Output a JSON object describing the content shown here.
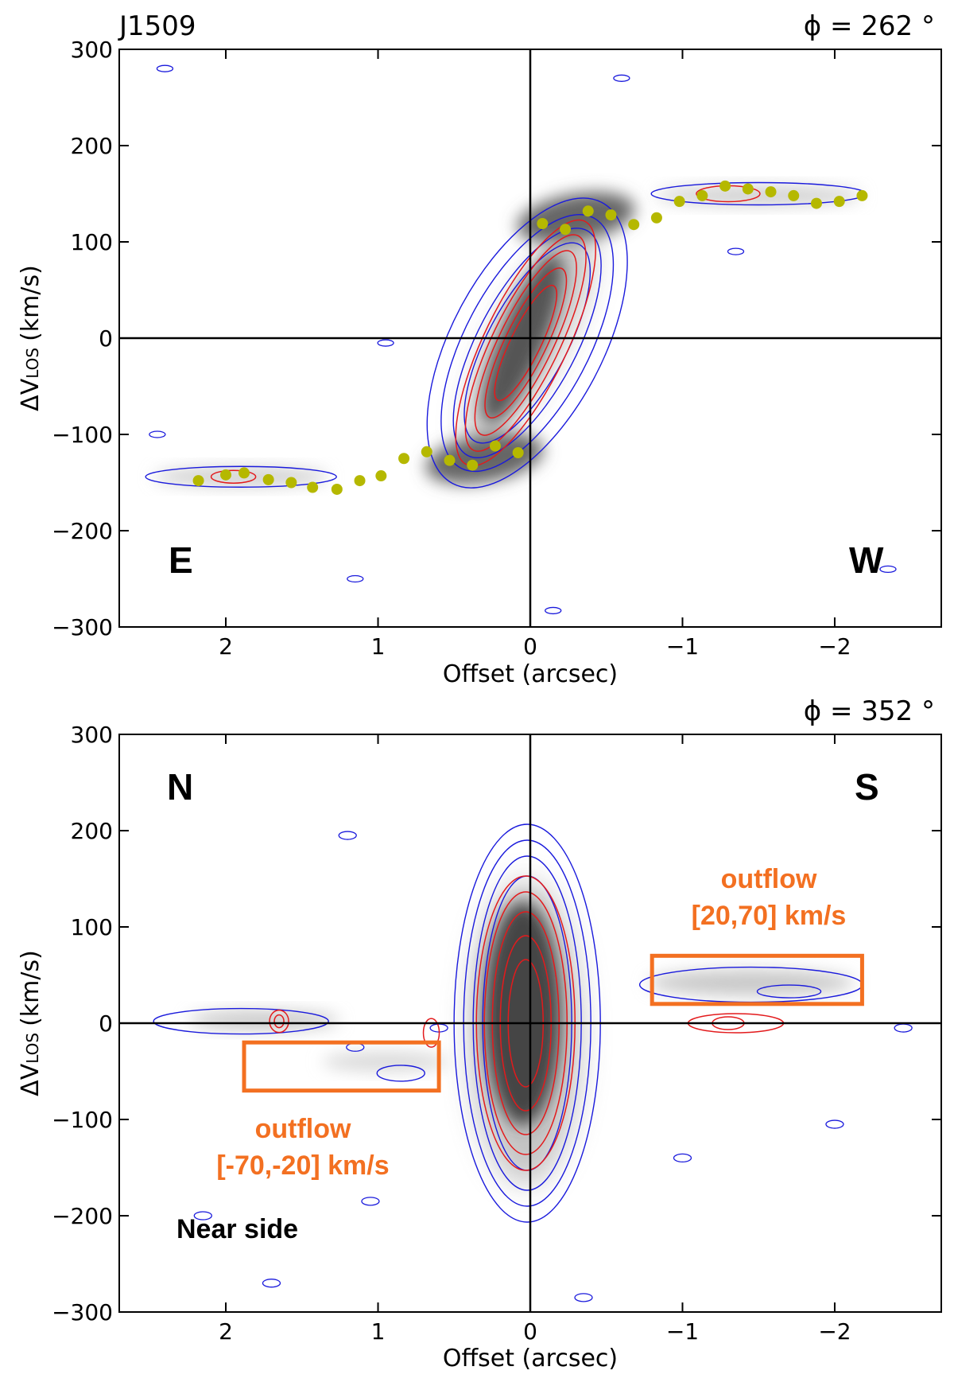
{
  "chart_data": [
    {
      "type": "contour",
      "panel": "top",
      "title": "J1509",
      "corner_label": "ϕ = 262 °",
      "xlabel": "Offset (arcsec)",
      "ylabel": "ΔV",
      "ylabel_sub": "LOS",
      "ylabel_unit": "(km/s)",
      "xlim": [
        2.7,
        -2.7
      ],
      "ylim": [
        -300,
        300
      ],
      "xticks": [
        2,
        1,
        0,
        -1,
        -2
      ],
      "xtick_labels": [
        "2",
        "1",
        "0",
        "−1",
        "−2"
      ],
      "yticks": [
        300,
        200,
        100,
        0,
        -100,
        -200,
        -300
      ],
      "ytick_labels": [
        "300",
        "200",
        "100",
        "0",
        "−100",
        "−200",
        "−300"
      ],
      "reference_lines": {
        "x": 0,
        "y": 0
      },
      "annotations": [
        {
          "text": "E",
          "position": "lower-left"
        },
        {
          "text": "W",
          "position": "lower-right"
        }
      ],
      "series": [
        {
          "kind": "scatter",
          "color": "#b5b800",
          "points": [
            {
              "x": 2.18,
              "y": -148
            },
            {
              "x": 2.0,
              "y": -142
            },
            {
              "x": 1.88,
              "y": -140
            },
            {
              "x": 1.72,
              "y": -147
            },
            {
              "x": 1.57,
              "y": -150
            },
            {
              "x": 1.43,
              "y": -155
            },
            {
              "x": 1.27,
              "y": -157
            },
            {
              "x": 1.12,
              "y": -148
            },
            {
              "x": 0.98,
              "y": -143
            },
            {
              "x": 0.83,
              "y": -125
            },
            {
              "x": 0.68,
              "y": -118
            },
            {
              "x": 0.53,
              "y": -127
            },
            {
              "x": 0.38,
              "y": -132
            },
            {
              "x": 0.23,
              "y": -112
            },
            {
              "x": 0.08,
              "y": -119
            },
            {
              "x": -0.08,
              "y": 119
            },
            {
              "x": -0.23,
              "y": 113
            },
            {
              "x": -0.38,
              "y": 132
            },
            {
              "x": -0.53,
              "y": 128
            },
            {
              "x": -0.68,
              "y": 118
            },
            {
              "x": -0.83,
              "y": 125
            },
            {
              "x": -0.98,
              "y": 142
            },
            {
              "x": -1.13,
              "y": 148
            },
            {
              "x": -1.28,
              "y": 158
            },
            {
              "x": -1.43,
              "y": 155
            },
            {
              "x": -1.58,
              "y": 152
            },
            {
              "x": -1.73,
              "y": 148
            },
            {
              "x": -1.88,
              "y": 140
            },
            {
              "x": -2.03,
              "y": 142
            },
            {
              "x": -2.18,
              "y": 148
            }
          ]
        }
      ],
      "colors": {
        "outer_contours": "#1a1adc",
        "inner_contours": "#e31a1c",
        "points": "#b5b800",
        "image": "greyscale"
      }
    },
    {
      "type": "contour",
      "panel": "bottom",
      "corner_label": "ϕ = 352 °",
      "xlabel": "Offset (arcsec)",
      "ylabel": "ΔV",
      "ylabel_sub": "LOS",
      "ylabel_unit": "(km/s)",
      "xlim": [
        2.7,
        -2.7
      ],
      "ylim": [
        -300,
        300
      ],
      "xticks": [
        2,
        1,
        0,
        -1,
        -2
      ],
      "xtick_labels": [
        "2",
        "1",
        "0",
        "−1",
        "−2"
      ],
      "yticks": [
        300,
        200,
        100,
        0,
        -100,
        -200,
        -300
      ],
      "ytick_labels": [
        "300",
        "200",
        "100",
        "0",
        "−100",
        "−200",
        "−300"
      ],
      "reference_lines": {
        "x": 0,
        "y": 0
      },
      "annotations": [
        {
          "text": "N",
          "position": "upper-left"
        },
        {
          "text": "S",
          "position": "upper-right"
        },
        {
          "text": "Near side",
          "position": "lower-left"
        },
        {
          "text": "outflow",
          "line2": "[20,70] km/s",
          "box": {
            "x": [
              -0.8,
              -2.18
            ],
            "y": [
              20,
              70
            ]
          },
          "color": "#f37021"
        },
        {
          "text": "outflow",
          "line2": "[-70,-20] km/s",
          "box": {
            "x": [
              1.88,
              0.6
            ],
            "y": [
              -70,
              -20
            ]
          },
          "color": "#f37021"
        }
      ],
      "colors": {
        "outer_contours": "#1a1adc",
        "inner_contours": "#e31a1c",
        "boxes": "#f37021",
        "image": "greyscale"
      }
    }
  ]
}
